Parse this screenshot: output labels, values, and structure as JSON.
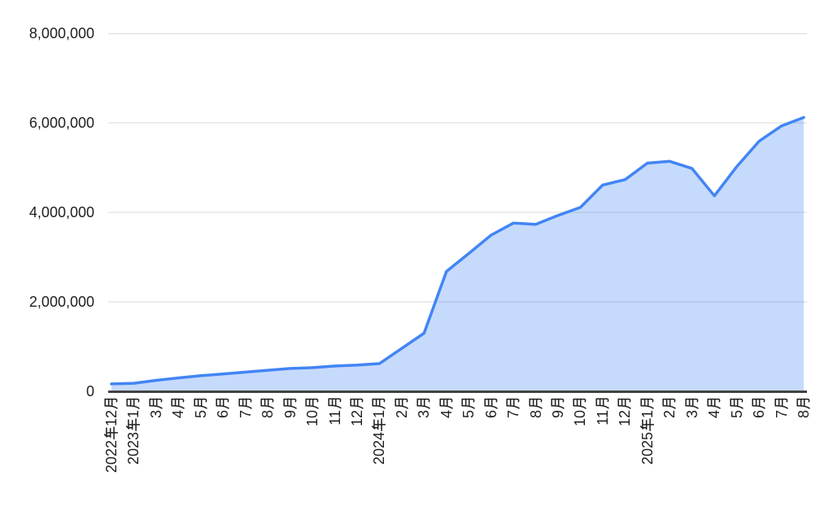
{
  "chart_data": {
    "type": "area",
    "title": "",
    "xlabel": "",
    "ylabel": "",
    "categories": [
      "2022年12月",
      "2023年1月",
      "3月",
      "4月",
      "5月",
      "6月",
      "7月",
      "8月",
      "9月",
      "10月",
      "11月",
      "12月",
      "2024年1月",
      "2月",
      "3月",
      "4月",
      "5月",
      "6月",
      "7月",
      "8月",
      "9月",
      "10月",
      "11月",
      "12月",
      "2025年1月",
      "2月",
      "3月",
      "4月",
      "5月",
      "6月",
      "7月",
      "8月"
    ],
    "values": [
      165000,
      180000,
      245000,
      300000,
      350000,
      390000,
      430000,
      470000,
      510000,
      530000,
      565000,
      585000,
      620000,
      960000,
      1300000,
      2680000,
      3080000,
      3490000,
      3760000,
      3730000,
      3930000,
      4110000,
      4610000,
      4730000,
      5100000,
      5140000,
      4980000,
      4370000,
      5020000,
      5590000,
      5930000,
      6120000
    ],
    "ylim": [
      0,
      8000000
    ],
    "yticks": [
      0,
      2000000,
      4000000,
      6000000,
      8000000
    ],
    "ytick_labels": [
      "0",
      "2,000,000",
      "4,000,000",
      "6,000,000",
      "8,000,000"
    ],
    "grid": true,
    "legend_position": "none",
    "colors": {
      "line": "#4285f4",
      "fill": "#4285f4",
      "fill_opacity": 0.3,
      "gridline": "#d9d9d9",
      "baseline": "#424242",
      "label_text": "#1f1f1f",
      "background": "#ffffff"
    }
  }
}
